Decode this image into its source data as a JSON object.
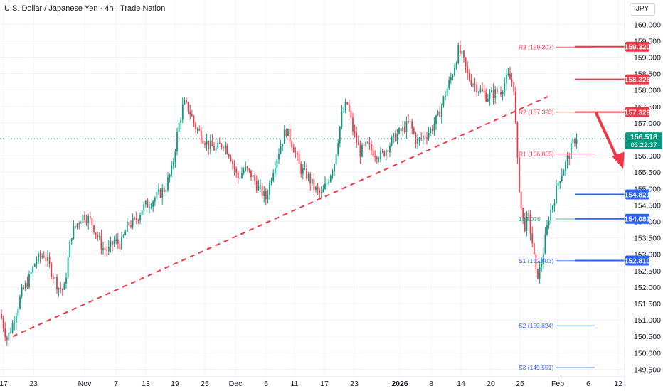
{
  "header": {
    "title": "U.S. Dollar / Japanese Yen · 4h · Trade Nation",
    "currency": "JPY"
  },
  "chart_data": {
    "type": "candlestick",
    "symbol": "USDJPY",
    "timeframe": "4h",
    "ylim": [
      149.4,
      160.3
    ],
    "y_ticks": [
      "160.000",
      "159.500",
      "159.000",
      "158.500",
      "158.000",
      "157.500",
      "157.000",
      "156.500",
      "156.000",
      "155.500",
      "155.000",
      "154.500",
      "154.000",
      "153.500",
      "153.000",
      "152.500",
      "152.000",
      "151.500",
      "151.000",
      "150.500",
      "150.000",
      "149.500"
    ],
    "x_ticks": [
      "17",
      "23",
      "Nov",
      "7",
      "13",
      "19",
      "25",
      "Dec",
      "5",
      "11",
      "17",
      "23",
      "2026",
      "8",
      "14",
      "20",
      "25",
      "Feb",
      "6",
      "12"
    ],
    "price_path": [
      [
        0,
        151.2
      ],
      [
        10,
        150.4
      ],
      [
        18,
        150.9
      ],
      [
        30,
        151.8
      ],
      [
        40,
        152.2
      ],
      [
        50,
        152.8
      ],
      [
        62,
        153.0
      ],
      [
        70,
        152.6
      ],
      [
        82,
        152.0
      ],
      [
        90,
        151.9
      ],
      [
        100,
        153.6
      ],
      [
        110,
        154.0
      ],
      [
        118,
        154.2
      ],
      [
        128,
        154.0
      ],
      [
        136,
        153.6
      ],
      [
        144,
        153.2
      ],
      [
        152,
        153.1
      ],
      [
        160,
        153.4
      ],
      [
        170,
        153.3
      ],
      [
        180,
        153.9
      ],
      [
        190,
        154.0
      ],
      [
        200,
        154.4
      ],
      [
        212,
        154.6
      ],
      [
        222,
        154.8
      ],
      [
        232,
        155.0
      ],
      [
        242,
        155.6
      ],
      [
        250,
        156.8
      ],
      [
        258,
        157.6
      ],
      [
        266,
        157.4
      ],
      [
        274,
        156.9
      ],
      [
        284,
        156.6
      ],
      [
        294,
        156.3
      ],
      [
        304,
        156.2
      ],
      [
        314,
        156.4
      ],
      [
        324,
        156.0
      ],
      [
        334,
        155.3
      ],
      [
        344,
        155.6
      ],
      [
        354,
        155.4
      ],
      [
        364,
        155.0
      ],
      [
        374,
        154.7
      ],
      [
        384,
        155.6
      ],
      [
        394,
        156.3
      ],
      [
        402,
        156.8
      ],
      [
        412,
        156.3
      ],
      [
        422,
        155.6
      ],
      [
        432,
        155.4
      ],
      [
        442,
        155.0
      ],
      [
        452,
        154.8
      ],
      [
        460,
        155.2
      ],
      [
        470,
        155.8
      ],
      [
        480,
        157.2
      ],
      [
        488,
        157.6
      ],
      [
        496,
        156.8
      ],
      [
        506,
        156.1
      ],
      [
        516,
        156.3
      ],
      [
        526,
        156.1
      ],
      [
        536,
        156.0
      ],
      [
        546,
        156.3
      ],
      [
        556,
        156.6
      ],
      [
        566,
        156.8
      ],
      [
        576,
        157.0
      ],
      [
        586,
        156.4
      ],
      [
        596,
        156.6
      ],
      [
        606,
        156.8
      ],
      [
        616,
        157.2
      ],
      [
        626,
        157.9
      ],
      [
        636,
        158.5
      ],
      [
        644,
        159.2
      ],
      [
        650,
        159.0
      ],
      [
        658,
        158.4
      ],
      [
        666,
        158.2
      ],
      [
        674,
        158.0
      ],
      [
        684,
        157.8
      ],
      [
        694,
        157.9
      ],
      [
        704,
        158.0
      ],
      [
        714,
        158.4
      ],
      [
        722,
        158.2
      ],
      [
        727,
        155.9
      ],
      [
        732,
        154.5
      ],
      [
        737,
        153.8
      ],
      [
        742,
        154.2
      ],
      [
        748,
        153.4
      ],
      [
        754,
        152.3
      ],
      [
        760,
        152.6
      ],
      [
        766,
        153.4
      ],
      [
        772,
        154.2
      ],
      [
        778,
        154.6
      ],
      [
        786,
        155.3
      ],
      [
        792,
        155.6
      ],
      [
        798,
        155.9
      ],
      [
        804,
        156.3
      ],
      [
        810,
        156.6
      ],
      [
        812,
        156.518
      ]
    ],
    "last_price": "156.518",
    "countdown": "03:22:37",
    "right_axis_labels": [
      {
        "value": 159.32,
        "text": "159.320",
        "color": "#f23645"
      },
      {
        "value": 158.326,
        "text": "158.326",
        "color": "#f23645"
      },
      {
        "value": 157.329,
        "text": "157.329",
        "color": "#f23645"
      },
      {
        "value": 154.821,
        "text": "154.821",
        "color": "#2962ff"
      },
      {
        "value": 154.081,
        "text": "154.081",
        "color": "#2962ff"
      },
      {
        "value": 152.81,
        "text": "152.810",
        "color": "#2962ff"
      }
    ],
    "pivot_levels": [
      {
        "name": "R3",
        "value": 159.307,
        "label": "R3 (159.307)",
        "color": "#f23645"
      },
      {
        "name": "R2",
        "value": 157.328,
        "label": "R2 (157.328)",
        "color": "#f23645"
      },
      {
        "name": "R1",
        "value": 156.055,
        "label": "R1 (156.055)",
        "color": "#f23645"
      },
      {
        "name": "P",
        "value": 154.076,
        "label": "154.076",
        "color": "#22ab94"
      },
      {
        "name": "S1",
        "value": 152.803,
        "label": "S1 (152.803)",
        "color": "#2962ff"
      },
      {
        "name": "S2",
        "value": 150.824,
        "label": "S2 (150.824)",
        "color": "#2962ff"
      },
      {
        "name": "S3",
        "value": 149.551,
        "label": "S3 (149.551)",
        "color": "#2962ff"
      }
    ],
    "trendline": {
      "from": [
        18,
        150.5
      ],
      "to": [
        770,
        157.8
      ],
      "style": "dashed",
      "color": "#f23645"
    },
    "forecast_arrow": {
      "from": [
        838,
        157.3
      ],
      "to": [
        872,
        155.6
      ],
      "color": "#f23645"
    },
    "colors": {
      "up": "#089981",
      "down": "#f23645",
      "grid": "#f0f3fa",
      "text": "#131722",
      "axis_text": "#131722"
    }
  }
}
